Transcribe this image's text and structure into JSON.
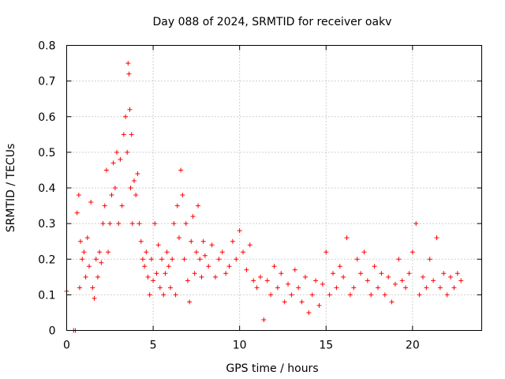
{
  "chart_data": {
    "type": "scatter",
    "title": "Day 088 of 2024, SRMTID for receiver oakv",
    "xlabel": "GPS time / hours",
    "ylabel": "SRMTID / TECUs",
    "xlim": [
      0,
      24
    ],
    "ylim": [
      0,
      0.8
    ],
    "xticks": [
      0,
      5,
      10,
      15,
      20
    ],
    "xtick_labels": [
      "0",
      "5",
      "10",
      "15",
      "20"
    ],
    "yticks": [
      0,
      0.1,
      0.2,
      0.3,
      0.4,
      0.5,
      0.6,
      0.7,
      0.8
    ],
    "ytick_labels": [
      "0",
      "0.1",
      "0.2",
      "0.3",
      "0.4",
      "0.5",
      "0.6",
      "0.7",
      "0.8"
    ],
    "grid": true,
    "marker": "+",
    "color": "#ff0000",
    "series": [
      {
        "name": "SRMTID",
        "x": [
          0.0,
          0.4,
          0.5,
          0.6,
          0.7,
          0.75,
          0.8,
          0.9,
          1.0,
          1.1,
          1.2,
          1.3,
          1.4,
          1.5,
          1.6,
          1.7,
          1.8,
          1.9,
          2.0,
          2.1,
          2.2,
          2.3,
          2.4,
          2.5,
          2.6,
          2.7,
          2.8,
          2.9,
          3.0,
          3.1,
          3.2,
          3.3,
          3.4,
          3.5,
          3.55,
          3.6,
          3.65,
          3.7,
          3.75,
          3.8,
          3.9,
          4.0,
          4.1,
          4.2,
          4.3,
          4.4,
          4.5,
          4.6,
          4.7,
          4.8,
          4.9,
          5.0,
          5.1,
          5.2,
          5.3,
          5.4,
          5.5,
          5.6,
          5.7,
          5.8,
          5.9,
          6.0,
          6.1,
          6.2,
          6.3,
          6.4,
          6.5,
          6.6,
          6.7,
          6.8,
          6.9,
          7.0,
          7.1,
          7.2,
          7.3,
          7.4,
          7.5,
          7.6,
          7.7,
          7.8,
          7.9,
          8.0,
          8.2,
          8.4,
          8.6,
          8.8,
          9.0,
          9.2,
          9.4,
          9.6,
          9.8,
          10.0,
          10.2,
          10.4,
          10.6,
          10.8,
          11.0,
          11.2,
          11.4,
          11.6,
          11.8,
          12.0,
          12.2,
          12.4,
          12.6,
          12.8,
          13.0,
          13.2,
          13.4,
          13.6,
          13.8,
          14.0,
          14.2,
          14.4,
          14.6,
          14.8,
          15.0,
          15.2,
          15.4,
          15.6,
          15.8,
          16.0,
          16.2,
          16.4,
          16.6,
          16.8,
          17.0,
          17.2,
          17.4,
          17.6,
          17.8,
          18.0,
          18.2,
          18.4,
          18.6,
          18.8,
          19.0,
          19.2,
          19.4,
          19.6,
          19.8,
          20.0,
          20.2,
          20.4,
          20.6,
          20.8,
          21.0,
          21.2,
          21.4,
          21.6,
          21.8,
          22.0,
          22.2,
          22.4,
          22.6,
          22.8
        ],
        "y": [
          0.11,
          0.0,
          0.0,
          0.33,
          0.38,
          0.12,
          0.25,
          0.2,
          0.22,
          0.15,
          0.26,
          0.18,
          0.36,
          0.12,
          0.09,
          0.2,
          0.15,
          0.22,
          0.19,
          0.3,
          0.35,
          0.45,
          0.22,
          0.3,
          0.38,
          0.47,
          0.4,
          0.5,
          0.3,
          0.48,
          0.35,
          0.55,
          0.6,
          0.5,
          0.75,
          0.72,
          0.62,
          0.4,
          0.55,
          0.3,
          0.42,
          0.38,
          0.44,
          0.3,
          0.25,
          0.2,
          0.18,
          0.22,
          0.15,
          0.1,
          0.2,
          0.14,
          0.3,
          0.16,
          0.24,
          0.12,
          0.2,
          0.1,
          0.16,
          0.22,
          0.18,
          0.12,
          0.2,
          0.3,
          0.1,
          0.35,
          0.26,
          0.45,
          0.38,
          0.2,
          0.3,
          0.14,
          0.08,
          0.25,
          0.32,
          0.16,
          0.22,
          0.35,
          0.2,
          0.15,
          0.25,
          0.21,
          0.18,
          0.24,
          0.15,
          0.2,
          0.22,
          0.16,
          0.18,
          0.25,
          0.2,
          0.28,
          0.22,
          0.17,
          0.24,
          0.14,
          0.12,
          0.15,
          0.03,
          0.14,
          0.1,
          0.18,
          0.12,
          0.16,
          0.08,
          0.13,
          0.1,
          0.17,
          0.12,
          0.08,
          0.15,
          0.05,
          0.1,
          0.14,
          0.07,
          0.13,
          0.22,
          0.1,
          0.16,
          0.12,
          0.18,
          0.15,
          0.26,
          0.1,
          0.12,
          0.2,
          0.16,
          0.22,
          0.14,
          0.1,
          0.18,
          0.12,
          0.16,
          0.1,
          0.15,
          0.08,
          0.13,
          0.2,
          0.14,
          0.12,
          0.16,
          0.22,
          0.3,
          0.1,
          0.15,
          0.12,
          0.2,
          0.14,
          0.26,
          0.12,
          0.16,
          0.1,
          0.15,
          0.12,
          0.16,
          0.14
        ]
      }
    ]
  }
}
